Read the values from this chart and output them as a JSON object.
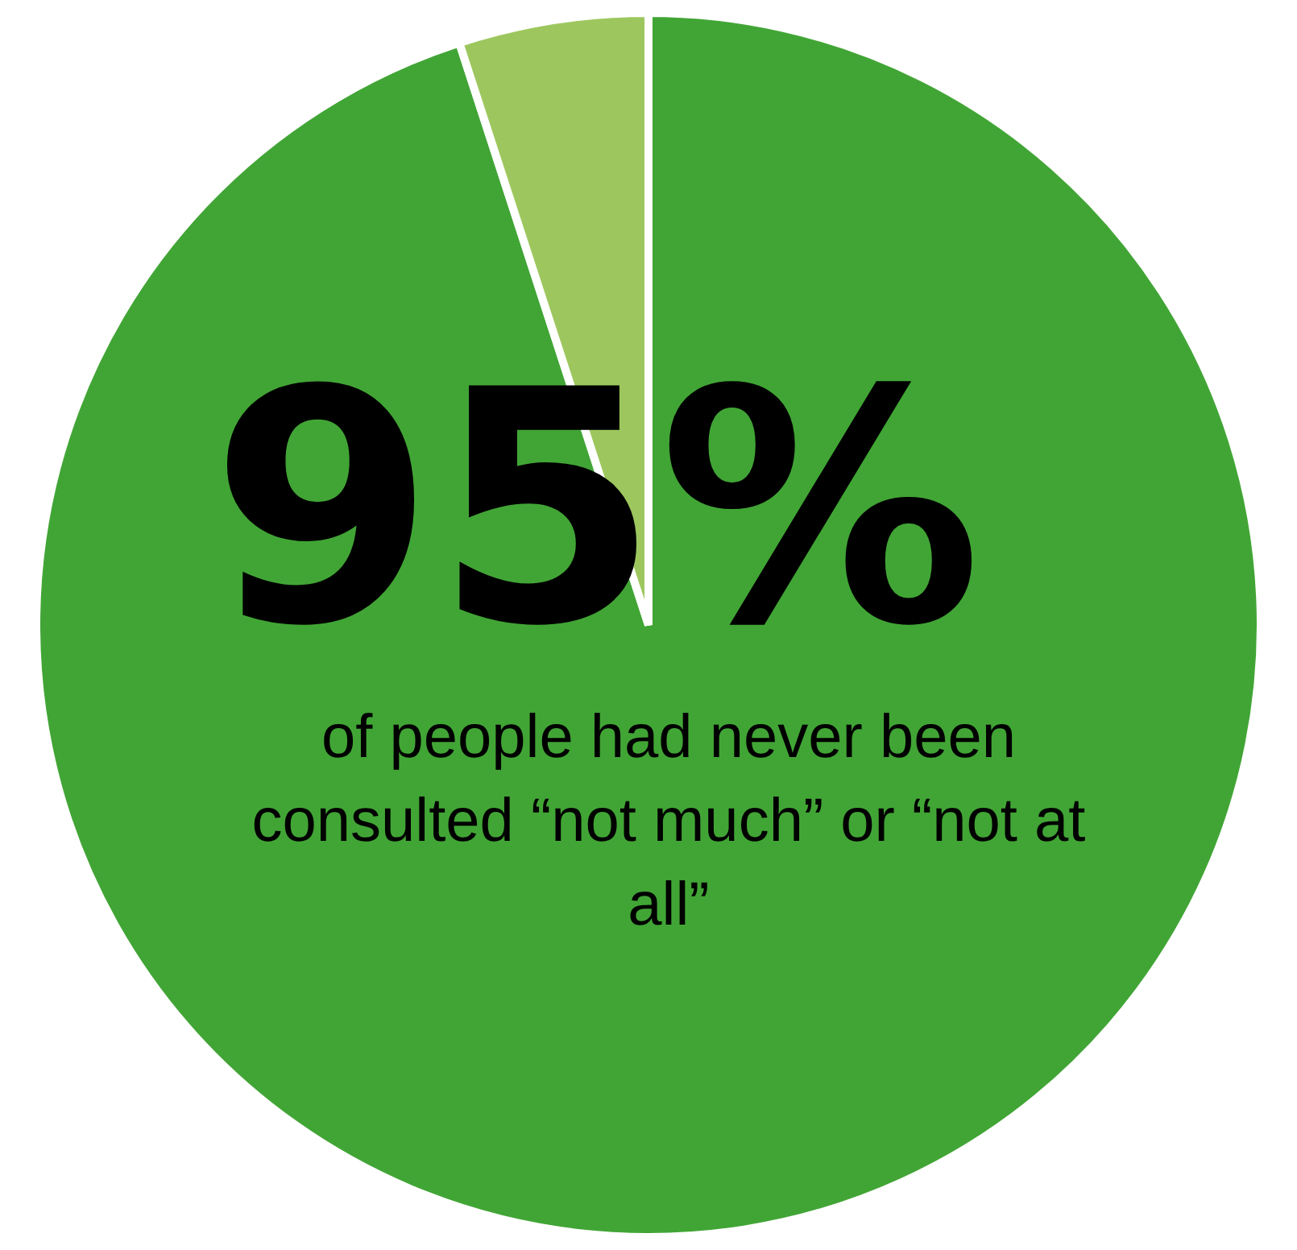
{
  "chart_data": {
    "type": "pie",
    "categories": [
      null,
      null
    ],
    "values": [
      95,
      5
    ],
    "colors": [
      "#41a535",
      "#9dc75e"
    ],
    "value_labels": [
      "95%",
      null
    ],
    "annotations": [
      "of people had never been consulted “not much” or “not at all”"
    ]
  }
}
